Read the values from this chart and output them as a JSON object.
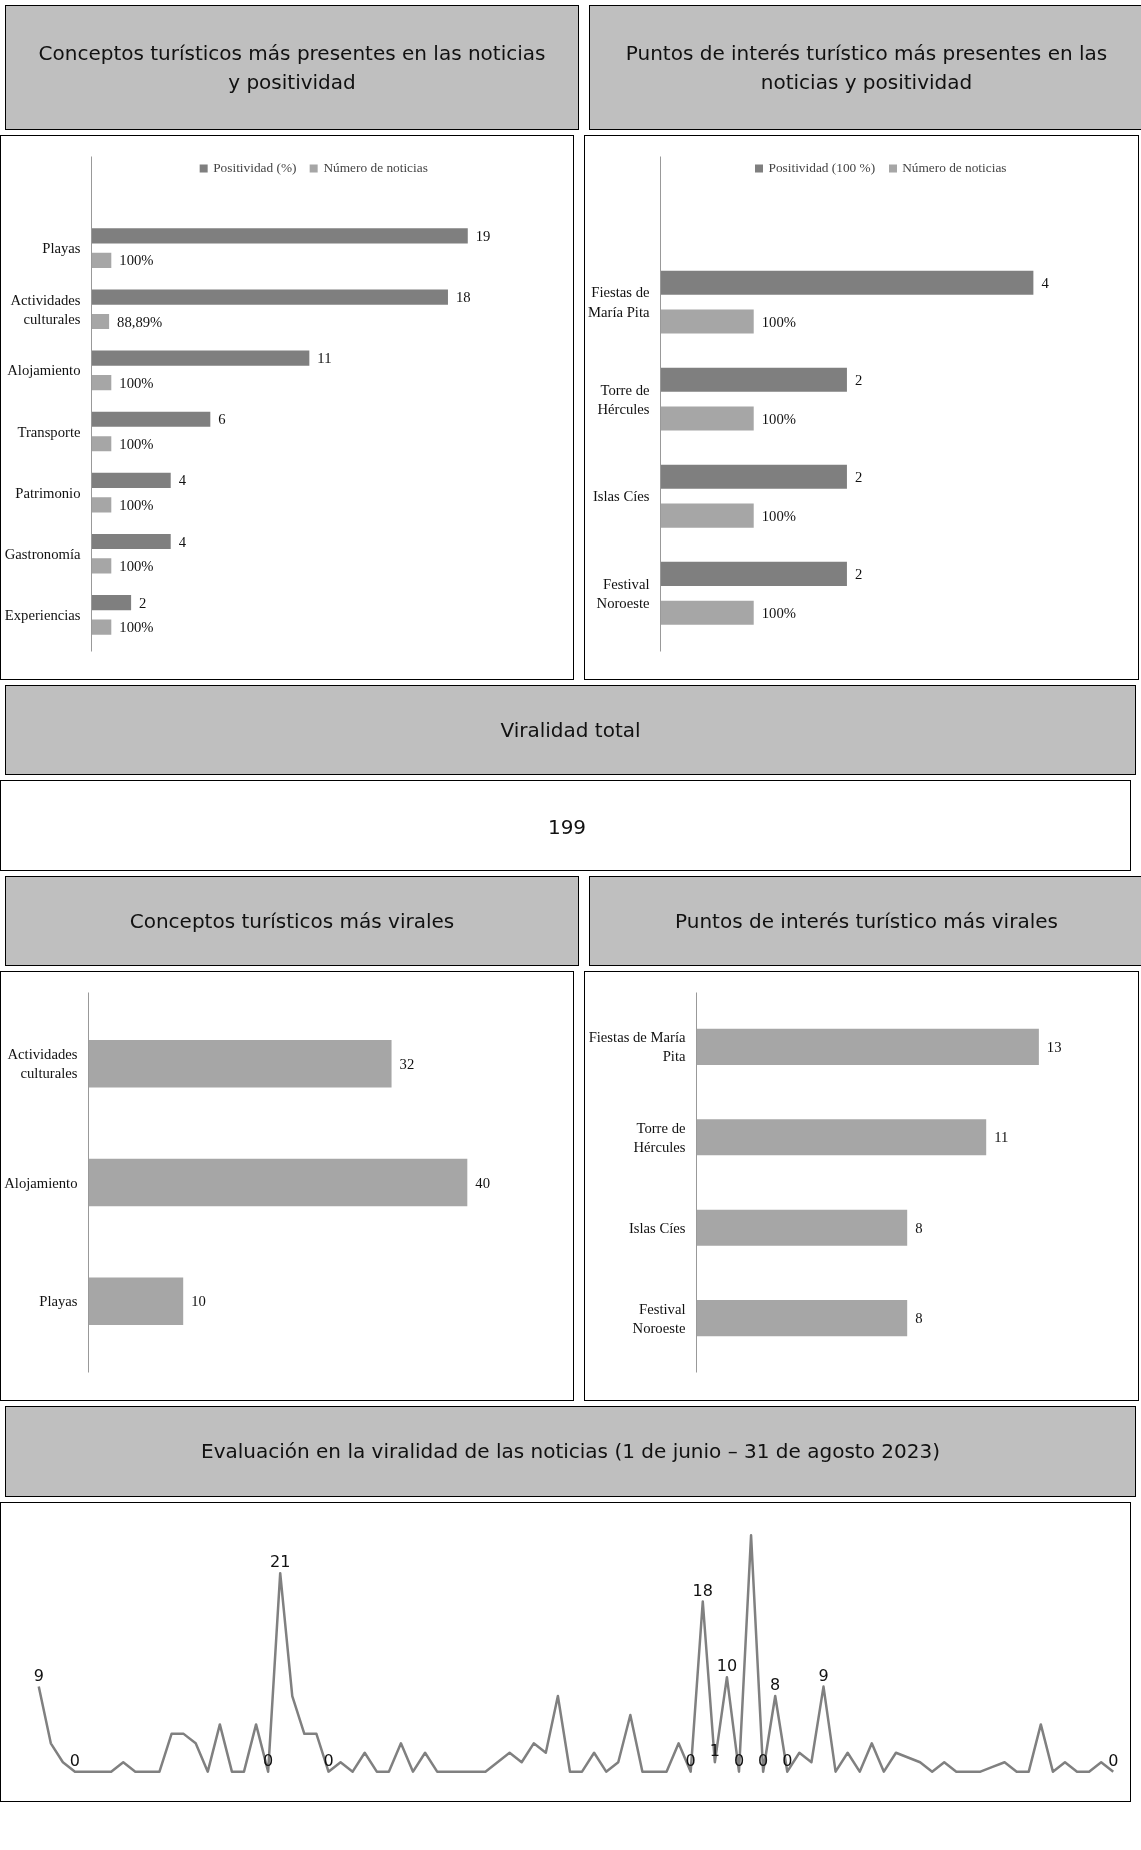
{
  "chart_data": [
    {
      "type": "bar",
      "orientation": "horizontal",
      "title": "Conceptos turísticos más presentes en las noticias y positividad",
      "legend": "top",
      "categories": [
        "Playas",
        "Actividades culturales",
        "Alojamiento",
        "Transporte",
        "Patrimonio",
        "Gastronomía",
        "Experiencias"
      ],
      "series": [
        {
          "name": "Positividad (%)",
          "color": "#7f7f7f",
          "values": [
            19,
            18,
            11,
            6,
            4,
            4,
            2
          ],
          "value_labels": [
            "19",
            "18",
            "11",
            "6",
            "4",
            "4",
            "2"
          ]
        },
        {
          "name": "Número de noticias",
          "color": "#a6a6a6",
          "values": [
            1,
            0.8889,
            1,
            1,
            1,
            1,
            1
          ],
          "value_labels": [
            "100%",
            "88,89%",
            "100%",
            "100%",
            "100%",
            "100%",
            "100%"
          ]
        }
      ]
    },
    {
      "type": "bar",
      "orientation": "horizontal",
      "title": "Puntos de interés turístico más presentes en las noticias y positividad",
      "legend": "top",
      "categories": [
        "Fiestas de María Pita",
        "Torre de Hércules",
        "Islas Cíes",
        "Festival Noroeste"
      ],
      "series": [
        {
          "name": "Positividad (100 %)",
          "color": "#7f7f7f",
          "values": [
            4,
            2,
            2,
            2
          ],
          "value_labels": [
            "4",
            "2",
            "2",
            "2"
          ]
        },
        {
          "name": "Número de noticias",
          "color": "#a6a6a6",
          "values": [
            1,
            1,
            1,
            1
          ],
          "value_labels": [
            "100%",
            "100%",
            "100%",
            "100%"
          ]
        }
      ]
    },
    {
      "type": "other",
      "title": "Viralidad total",
      "annotations": [
        "199"
      ]
    },
    {
      "type": "bar",
      "orientation": "horizontal",
      "title": "Conceptos turísticos más virales",
      "categories": [
        "Actividades culturales",
        "Alojamiento",
        "Playas"
      ],
      "values": [
        32,
        40,
        10
      ],
      "color": "#a6a6a6",
      "data_labels": true
    },
    {
      "type": "bar",
      "orientation": "horizontal",
      "title": "Puntos de interés turístico más virales",
      "categories": [
        "Fiestas de María Pita",
        "Torre de Hércules",
        "Islas Cíes",
        "Festival Noroeste"
      ],
      "values": [
        13,
        11,
        8,
        8
      ],
      "color": "#a6a6a6",
      "data_labels": true
    },
    {
      "type": "line",
      "title": "Evaluación en la viralidad de las noticias (1 de junio – 31 de agosto 2023)",
      "tick_labels": false,
      "categories": [
        null,
        null,
        null,
        null,
        null,
        null,
        null,
        null,
        null,
        null,
        null,
        null,
        null,
        null,
        null,
        null,
        null,
        null,
        null,
        null,
        null,
        null,
        null,
        null,
        null,
        null,
        null,
        null,
        null,
        null,
        null,
        null,
        null,
        null,
        null,
        null,
        null,
        null,
        null,
        null,
        null,
        null,
        null,
        null,
        null,
        null,
        null,
        null,
        null,
        null,
        null,
        null,
        null,
        null,
        null,
        null,
        null,
        null,
        null,
        null,
        null,
        null,
        null,
        null,
        null,
        null,
        null,
        null,
        null,
        null,
        null,
        null,
        null,
        null,
        null,
        null,
        null,
        null,
        null,
        null,
        null,
        null,
        null,
        null,
        null,
        null,
        null,
        null,
        null,
        null
      ],
      "series": [
        {
          "color": "#808080",
          "values": [
            9,
            3,
            1,
            0,
            0,
            0,
            0,
            1,
            0,
            0,
            0,
            4,
            4,
            3,
            0,
            5,
            0,
            0,
            5,
            0,
            21,
            8,
            4,
            4,
            0,
            1,
            0,
            2,
            0,
            0,
            3,
            0,
            2,
            0,
            0,
            0,
            0,
            0,
            1,
            2,
            1,
            3,
            2,
            8,
            0,
            0,
            2,
            0,
            1,
            6,
            0,
            0,
            0,
            3,
            0,
            18,
            1,
            10,
            0,
            25,
            0,
            8,
            0,
            2,
            1,
            9,
            0,
            2,
            0,
            3,
            0,
            2,
            1.5,
            1,
            0,
            1,
            0,
            0,
            0,
            0.5,
            1,
            0,
            0,
            5,
            0,
            1,
            0,
            0,
            1,
            0
          ],
          "value_labels": [
            "9",
            null,
            null,
            "0",
            null,
            null,
            null,
            null,
            null,
            null,
            null,
            null,
            null,
            null,
            null,
            null,
            null,
            null,
            null,
            "0",
            "21",
            null,
            null,
            null,
            "0",
            null,
            null,
            null,
            null,
            null,
            null,
            null,
            null,
            null,
            null,
            null,
            null,
            null,
            null,
            null,
            null,
            null,
            null,
            null,
            null,
            null,
            null,
            null,
            null,
            null,
            null,
            null,
            null,
            null,
            "0",
            "18",
            "1",
            "10",
            "0",
            null,
            "0",
            "8",
            "0",
            null,
            null,
            "9",
            null,
            null,
            null,
            null,
            null,
            null,
            null,
            null,
            null,
            null,
            null,
            null,
            null,
            null,
            null,
            null,
            null,
            null,
            null,
            null,
            null,
            null,
            null,
            "0"
          ]
        }
      ]
    }
  ]
}
